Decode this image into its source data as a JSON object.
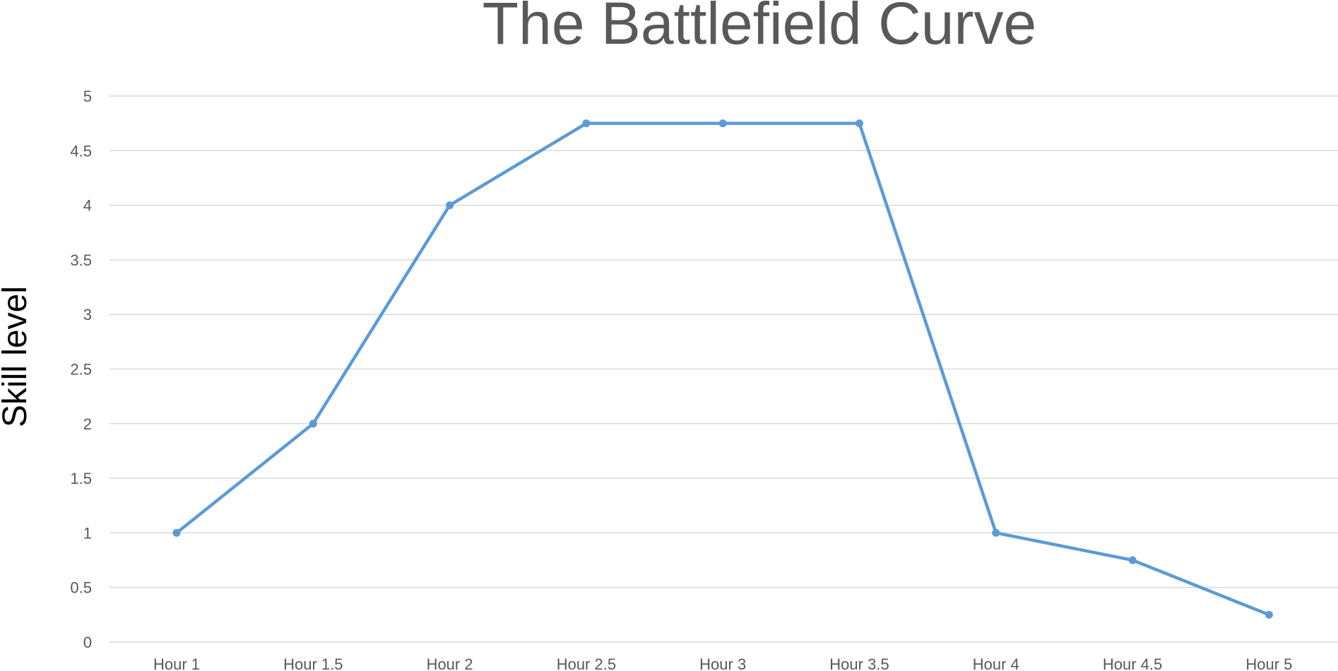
{
  "chart_data": {
    "type": "line",
    "title": "The Battlefield Curve",
    "xlabel": "",
    "ylabel": "Skill level",
    "categories": [
      "Hour 1",
      "Hour 1.5",
      "Hour 2",
      "Hour 2.5",
      "Hour 3",
      "Hour 3.5",
      "Hour 4",
      "Hour 4.5",
      "Hour 5"
    ],
    "series": [
      {
        "values": [
          1,
          2,
          4,
          4.75,
          4.75,
          4.75,
          1,
          0.75,
          0.25
        ],
        "color": "#5B9BD5"
      }
    ],
    "ylim": [
      0,
      5
    ],
    "y_ticks": [
      "0",
      "0.5",
      "1",
      "1.5",
      "2",
      "2.5",
      "3",
      "3.5",
      "4",
      "4.5",
      "5"
    ],
    "grid": true,
    "legend": "none",
    "colors": {
      "gridline": "#D9D9D9",
      "title": "#595959",
      "tick_text": "#595959",
      "axis_label": "#000000"
    }
  }
}
